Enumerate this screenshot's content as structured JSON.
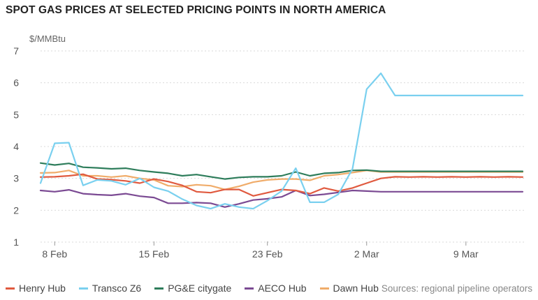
{
  "title": "SPOT GAS PRICES AT SELECTED PRICING POINTS IN NORTH AMERICA",
  "source": "Sources: regional pipeline operators",
  "chart_data": {
    "type": "line",
    "title": "SPOT GAS PRICES AT SELECTED PRICING POINTS IN NORTH AMERICA",
    "ylabel": "$/MMBtu",
    "xlabel": "",
    "ylim": [
      1,
      7
    ],
    "yticks": [
      1,
      2,
      3,
      4,
      5,
      6,
      7
    ],
    "grid": "horizontal dashed",
    "legend_position": "bottom",
    "x": [
      "7 Feb",
      "8 Feb",
      "9 Feb",
      "10 Feb",
      "11 Feb",
      "12 Feb",
      "13 Feb",
      "14 Feb",
      "15 Feb",
      "16 Feb",
      "17 Feb",
      "18 Feb",
      "19 Feb",
      "20 Feb",
      "21 Feb",
      "22 Feb",
      "23 Feb",
      "24 Feb",
      "25 Feb",
      "26 Feb",
      "27 Feb",
      "28 Feb",
      "1 Mar",
      "2 Mar",
      "3 Mar",
      "4 Mar",
      "5 Mar",
      "6 Mar",
      "7 Mar",
      "8 Mar",
      "9 Mar",
      "10 Mar",
      "11 Mar",
      "12 Mar",
      "13 Mar"
    ],
    "x_tick_labels": [
      {
        "label": "8 Feb",
        "x": "8 Feb"
      },
      {
        "label": "15 Feb",
        "x": "15 Feb"
      },
      {
        "label": "23 Feb",
        "x": "23 Feb"
      },
      {
        "label": "2 Mar",
        "x": "2 Mar"
      },
      {
        "label": "9 Mar",
        "x": "9 Mar"
      }
    ],
    "series": [
      {
        "name": "Henry Hub",
        "color": "#e05a3f",
        "values": [
          3.04,
          3.05,
          3.08,
          3.13,
          2.98,
          2.96,
          2.92,
          2.85,
          2.98,
          2.9,
          2.78,
          2.58,
          2.55,
          2.65,
          2.65,
          2.45,
          2.55,
          2.65,
          2.62,
          2.52,
          2.7,
          2.6,
          2.7,
          2.85,
          3.0,
          3.05,
          3.04,
          3.05,
          3.04,
          3.05,
          3.04,
          3.05,
          3.04,
          3.05,
          3.04
        ]
      },
      {
        "name": "Transco Z6",
        "color": "#7ad0ef",
        "values": [
          2.85,
          4.1,
          4.12,
          2.78,
          2.95,
          2.92,
          2.8,
          3.0,
          2.72,
          2.6,
          2.35,
          2.15,
          2.05,
          2.2,
          2.1,
          2.05,
          2.3,
          2.6,
          3.32,
          2.25,
          2.25,
          2.5,
          3.3,
          5.8,
          6.3,
          5.6,
          5.6,
          5.6,
          5.6,
          5.6,
          5.6,
          5.6,
          5.6,
          5.6,
          5.6
        ]
      },
      {
        "name": "PG&E citygate",
        "color": "#2e7d5b",
        "values": [
          3.48,
          3.42,
          3.47,
          3.35,
          3.33,
          3.3,
          3.32,
          3.25,
          3.2,
          3.16,
          3.08,
          3.12,
          3.05,
          2.98,
          3.03,
          3.05,
          3.05,
          3.08,
          3.2,
          3.08,
          3.16,
          3.18,
          3.25,
          3.26,
          3.22,
          3.22,
          3.22,
          3.22,
          3.22,
          3.22,
          3.22,
          3.22,
          3.22,
          3.22,
          3.22
        ]
      },
      {
        "name": "AECO Hub",
        "color": "#7b4a93",
        "values": [
          2.62,
          2.58,
          2.64,
          2.52,
          2.49,
          2.47,
          2.52,
          2.44,
          2.4,
          2.22,
          2.22,
          2.24,
          2.22,
          2.1,
          2.2,
          2.32,
          2.36,
          2.42,
          2.62,
          2.46,
          2.5,
          2.56,
          2.62,
          2.6,
          2.58,
          2.58,
          2.58,
          2.58,
          2.58,
          2.58,
          2.58,
          2.58,
          2.58,
          2.58,
          2.58
        ]
      },
      {
        "name": "Dawn Hub",
        "color": "#f0ac6a",
        "values": [
          3.17,
          3.18,
          3.25,
          3.08,
          3.08,
          3.04,
          3.08,
          3.0,
          2.95,
          2.77,
          2.74,
          2.8,
          2.77,
          2.65,
          2.75,
          2.88,
          2.95,
          2.98,
          2.98,
          2.94,
          3.08,
          3.12,
          3.18,
          3.25,
          3.2,
          3.2,
          3.2,
          3.2,
          3.2,
          3.2,
          3.2,
          3.2,
          3.2,
          3.2,
          3.2
        ]
      }
    ]
  }
}
